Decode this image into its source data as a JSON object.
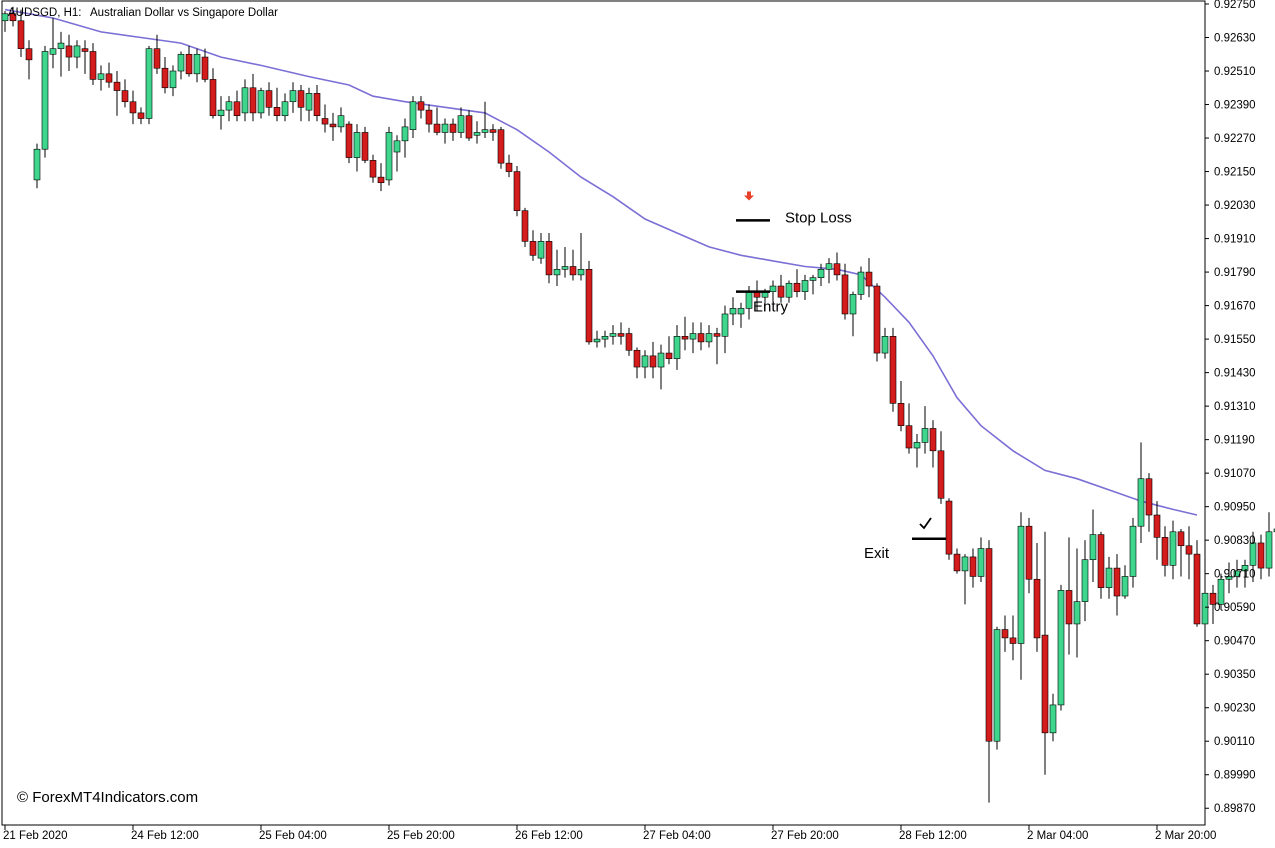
{
  "header": {
    "symbol": "AUDSGD, H1:",
    "description": "Australian Dollar vs Singapore Dollar"
  },
  "copyright": "© ForexMT4Indicators.com",
  "colors": {
    "bull": "#3dd68c",
    "bear": "#d41c1c",
    "ma": "#7b6fd6",
    "signal_arrow": "#e8412a",
    "frame": "#000000",
    "background": "#ffffff"
  },
  "chart_data": {
    "type": "candlestick",
    "symbol": "AUDSGD",
    "timeframe": "H1",
    "ylim": [
      0.8981,
      0.9275
    ],
    "y_ticks": [
      "0.92750",
      "0.92630",
      "0.92510",
      "0.92390",
      "0.92270",
      "0.92150",
      "0.92030",
      "0.91910",
      "0.91790",
      "0.91670",
      "0.91550",
      "0.91430",
      "0.91310",
      "0.91190",
      "0.91070",
      "0.90950",
      "0.90830",
      "0.90710",
      "0.90590",
      "0.90470",
      "0.90350",
      "0.90230",
      "0.90110",
      "0.89990",
      "0.89870"
    ],
    "x_ticks": [
      "21 Feb 2020",
      "24 Feb 12:00",
      "25 Feb 04:00",
      "25 Feb 20:00",
      "26 Feb 12:00",
      "27 Feb 04:00",
      "27 Feb 20:00",
      "28 Feb 12:00",
      "2 Mar 04:00",
      "2 Mar 20:00"
    ],
    "x_tick_bars": [
      0,
      16,
      32,
      48,
      64,
      80,
      96,
      112,
      128,
      144
    ],
    "candles": [
      [
        0.9269,
        0.92725,
        0.9265,
        0.92715
      ],
      [
        0.92715,
        0.9274,
        0.9267,
        0.9269
      ],
      [
        0.9269,
        0.9273,
        0.9256,
        0.9259
      ],
      [
        0.9259,
        0.9262,
        0.9248,
        0.9255
      ],
      [
        0.9212,
        0.9225,
        0.9209,
        0.9223
      ],
      [
        0.9223,
        0.926,
        0.922,
        0.9258
      ],
      [
        0.9257,
        0.927,
        0.9252,
        0.9259
      ],
      [
        0.9259,
        0.9265,
        0.9249,
        0.9261
      ],
      [
        0.926,
        0.9264,
        0.9251,
        0.9256
      ],
      [
        0.9256,
        0.9262,
        0.9252,
        0.926
      ],
      [
        0.9259,
        0.9262,
        0.925,
        0.9258
      ],
      [
        0.9258,
        0.9261,
        0.9246,
        0.9248
      ],
      [
        0.9248,
        0.9253,
        0.9244,
        0.925
      ],
      [
        0.925,
        0.9254,
        0.9245,
        0.9247
      ],
      [
        0.9247,
        0.9251,
        0.9235,
        0.9244
      ],
      [
        0.9244,
        0.9248,
        0.9238,
        0.924
      ],
      [
        0.924,
        0.9244,
        0.9232,
        0.9236
      ],
      [
        0.9236,
        0.9238,
        0.9232,
        0.9234
      ],
      [
        0.9234,
        0.926,
        0.9232,
        0.9259
      ],
      [
        0.9259,
        0.9264,
        0.925,
        0.9252
      ],
      [
        0.9252,
        0.9256,
        0.9243,
        0.9245
      ],
      [
        0.9245,
        0.9253,
        0.9242,
        0.9251
      ],
      [
        0.9251,
        0.9258,
        0.9248,
        0.9257
      ],
      [
        0.9257,
        0.926,
        0.9249,
        0.925
      ],
      [
        0.925,
        0.9259,
        0.9247,
        0.9257
      ],
      [
        0.9256,
        0.9259,
        0.9247,
        0.9248
      ],
      [
        0.9248,
        0.9252,
        0.9234,
        0.9235
      ],
      [
        0.9235,
        0.9242,
        0.923,
        0.9237
      ],
      [
        0.9237,
        0.9242,
        0.9233,
        0.924
      ],
      [
        0.924,
        0.9244,
        0.9233,
        0.9235
      ],
      [
        0.9236,
        0.9248,
        0.9233,
        0.9245
      ],
      [
        0.9245,
        0.925,
        0.9233,
        0.9236
      ],
      [
        0.9236,
        0.9245,
        0.9234,
        0.9244
      ],
      [
        0.9244,
        0.9247,
        0.9235,
        0.9238
      ],
      [
        0.9238,
        0.9245,
        0.9233,
        0.9235
      ],
      [
        0.9235,
        0.9243,
        0.9233,
        0.924
      ],
      [
        0.924,
        0.9247,
        0.9236,
        0.9244
      ],
      [
        0.9244,
        0.9246,
        0.9233,
        0.9238
      ],
      [
        0.9237,
        0.9245,
        0.9233,
        0.9243
      ],
      [
        0.9243,
        0.9246,
        0.9233,
        0.9235
      ],
      [
        0.9234,
        0.9239,
        0.9229,
        0.9232
      ],
      [
        0.9232,
        0.9236,
        0.9226,
        0.9231
      ],
      [
        0.9231,
        0.9238,
        0.9229,
        0.9235
      ],
      [
        0.9232,
        0.9233,
        0.9218,
        0.922
      ],
      [
        0.922,
        0.9232,
        0.9215,
        0.9229
      ],
      [
        0.9229,
        0.9231,
        0.9218,
        0.9219
      ],
      [
        0.9219,
        0.9221,
        0.9211,
        0.9213
      ],
      [
        0.9213,
        0.9218,
        0.9208,
        0.9211
      ],
      [
        0.9212,
        0.9231,
        0.921,
        0.9229
      ],
      [
        0.9222,
        0.9228,
        0.9215,
        0.9226
      ],
      [
        0.9226,
        0.9234,
        0.922,
        0.9231
      ],
      [
        0.923,
        0.9242,
        0.9227,
        0.924
      ],
      [
        0.924,
        0.9242,
        0.9234,
        0.9237
      ],
      [
        0.9237,
        0.9239,
        0.9229,
        0.9232
      ],
      [
        0.9232,
        0.9238,
        0.9228,
        0.9229
      ],
      [
        0.9229,
        0.9234,
        0.9225,
        0.9232
      ],
      [
        0.9232,
        0.9234,
        0.9226,
        0.9229
      ],
      [
        0.9229,
        0.9238,
        0.9227,
        0.9235
      ],
      [
        0.9235,
        0.9237,
        0.9226,
        0.9227
      ],
      [
        0.9228,
        0.9233,
        0.9225,
        0.9229
      ],
      [
        0.9229,
        0.924,
        0.9227,
        0.923
      ],
      [
        0.923,
        0.9232,
        0.9226,
        0.9229
      ],
      [
        0.923,
        0.9231,
        0.9216,
        0.9218
      ],
      [
        0.9218,
        0.9221,
        0.9213,
        0.9215
      ],
      [
        0.9215,
        0.9217,
        0.9199,
        0.9201
      ],
      [
        0.9201,
        0.9202,
        0.9188,
        0.919
      ],
      [
        0.919,
        0.9194,
        0.9183,
        0.9185
      ],
      [
        0.9184,
        0.9193,
        0.9182,
        0.919
      ],
      [
        0.919,
        0.9193,
        0.9175,
        0.9178
      ],
      [
        0.9178,
        0.9187,
        0.9174,
        0.918
      ],
      [
        0.918,
        0.9188,
        0.9177,
        0.9181
      ],
      [
        0.9181,
        0.9187,
        0.9176,
        0.9178
      ],
      [
        0.9178,
        0.9193,
        0.9176,
        0.918
      ],
      [
        0.918,
        0.9183,
        0.9153,
        0.9154
      ],
      [
        0.9154,
        0.9158,
        0.9152,
        0.9155
      ],
      [
        0.9155,
        0.9158,
        0.9152,
        0.9156
      ],
      [
        0.9156,
        0.916,
        0.9153,
        0.9157
      ],
      [
        0.9157,
        0.9161,
        0.9153,
        0.9156
      ],
      [
        0.9157,
        0.9159,
        0.9149,
        0.9151
      ],
      [
        0.9151,
        0.9152,
        0.9141,
        0.9145
      ],
      [
        0.9145,
        0.9151,
        0.9141,
        0.9149
      ],
      [
        0.9149,
        0.9154,
        0.9141,
        0.9145
      ],
      [
        0.9145,
        0.9153,
        0.9137,
        0.915
      ],
      [
        0.915,
        0.9156,
        0.9146,
        0.9148
      ],
      [
        0.9148,
        0.916,
        0.9144,
        0.9156
      ],
      [
        0.9156,
        0.9163,
        0.9151,
        0.9155
      ],
      [
        0.9155,
        0.9161,
        0.915,
        0.9157
      ],
      [
        0.9157,
        0.9161,
        0.9151,
        0.9154
      ],
      [
        0.9154,
        0.916,
        0.9152,
        0.9157
      ],
      [
        0.9157,
        0.9159,
        0.9146,
        0.9156
      ],
      [
        0.9156,
        0.9167,
        0.915,
        0.9164
      ],
      [
        0.9164,
        0.917,
        0.916,
        0.9166
      ],
      [
        0.9164,
        0.9168,
        0.9159,
        0.9166
      ],
      [
        0.9166,
        0.9174,
        0.9162,
        0.9172
      ],
      [
        0.9172,
        0.9176,
        0.9165,
        0.917
      ],
      [
        0.917,
        0.9173,
        0.9165,
        0.9172
      ],
      [
        0.9172,
        0.9176,
        0.9168,
        0.9174
      ],
      [
        0.9174,
        0.9178,
        0.9168,
        0.917
      ],
      [
        0.917,
        0.9176,
        0.9168,
        0.9175
      ],
      [
        0.9175,
        0.918,
        0.917,
        0.9172
      ],
      [
        0.9172,
        0.9178,
        0.9169,
        0.9176
      ],
      [
        0.9176,
        0.9178,
        0.9171,
        0.9177
      ],
      [
        0.9177,
        0.9182,
        0.9174,
        0.918
      ],
      [
        0.918,
        0.9184,
        0.9175,
        0.9182
      ],
      [
        0.9182,
        0.9186,
        0.9176,
        0.9178
      ],
      [
        0.9178,
        0.9182,
        0.9162,
        0.9164
      ],
      [
        0.9164,
        0.9172,
        0.9156,
        0.9171
      ],
      [
        0.9171,
        0.9181,
        0.9169,
        0.9179
      ],
      [
        0.9179,
        0.9184,
        0.917,
        0.9174
      ],
      [
        0.9174,
        0.9175,
        0.9147,
        0.915
      ],
      [
        0.915,
        0.9159,
        0.9148,
        0.9156
      ],
      [
        0.9156,
        0.9159,
        0.9129,
        0.9132
      ],
      [
        0.9132,
        0.914,
        0.9122,
        0.9124
      ],
      [
        0.9124,
        0.9132,
        0.9114,
        0.9116
      ],
      [
        0.9116,
        0.9121,
        0.9109,
        0.9118
      ],
      [
        0.9118,
        0.9131,
        0.9114,
        0.9123
      ],
      [
        0.9123,
        0.9126,
        0.9109,
        0.9115
      ],
      [
        0.9115,
        0.9122,
        0.9096,
        0.9098
      ],
      [
        0.9097,
        0.9098,
        0.9076,
        0.9078
      ],
      [
        0.9078,
        0.908,
        0.9071,
        0.9072
      ],
      [
        0.9072,
        0.9078,
        0.906,
        0.9077
      ],
      [
        0.9077,
        0.908,
        0.9066,
        0.907
      ],
      [
        0.907,
        0.9084,
        0.9068,
        0.908
      ],
      [
        0.908,
        0.9083,
        0.8989,
        0.9011
      ],
      [
        0.9011,
        0.9052,
        0.9008,
        0.9051
      ],
      [
        0.9051,
        0.9056,
        0.9043,
        0.9048
      ],
      [
        0.9048,
        0.9056,
        0.904,
        0.9046
      ],
      [
        0.9046,
        0.9093,
        0.9033,
        0.9088
      ],
      [
        0.9088,
        0.9091,
        0.9064,
        0.9069
      ],
      [
        0.9069,
        0.9082,
        0.9043,
        0.9048
      ],
      [
        0.9049,
        0.9086,
        0.8999,
        0.9014
      ],
      [
        0.9014,
        0.9028,
        0.9011,
        0.9024
      ],
      [
        0.9024,
        0.9067,
        0.9022,
        0.9065
      ],
      [
        0.9065,
        0.9084,
        0.9042,
        0.9053
      ],
      [
        0.9053,
        0.908,
        0.9041,
        0.9061
      ],
      [
        0.9061,
        0.9083,
        0.9054,
        0.9076
      ],
      [
        0.9076,
        0.9094,
        0.9068,
        0.9085
      ],
      [
        0.9085,
        0.9086,
        0.9062,
        0.9066
      ],
      [
        0.9066,
        0.9077,
        0.9062,
        0.9073
      ],
      [
        0.9073,
        0.9078,
        0.9056,
        0.9063
      ],
      [
        0.9063,
        0.9074,
        0.9062,
        0.907
      ],
      [
        0.907,
        0.9091,
        0.9066,
        0.9088
      ],
      [
        0.9088,
        0.9118,
        0.9082,
        0.9105
      ],
      [
        0.9105,
        0.9107,
        0.9086,
        0.9092
      ],
      [
        0.9092,
        0.9097,
        0.9076,
        0.9084
      ],
      [
        0.9084,
        0.9088,
        0.907,
        0.9074
      ],
      [
        0.9074,
        0.909,
        0.9069,
        0.9086
      ],
      [
        0.9086,
        0.9087,
        0.907,
        0.9081
      ],
      [
        0.9081,
        0.9088,
        0.9069,
        0.9078
      ],
      [
        0.9078,
        0.9083,
        0.9052,
        0.9053
      ],
      [
        0.9053,
        0.9078,
        0.9048,
        0.9064
      ],
      [
        0.9064,
        0.9067,
        0.9053,
        0.906
      ],
      [
        0.906,
        0.9071,
        0.9058,
        0.9069
      ],
      [
        0.9069,
        0.9075,
        0.9064,
        0.907
      ],
      [
        0.907,
        0.9076,
        0.9066,
        0.9072
      ],
      [
        0.9072,
        0.9076,
        0.9066,
        0.9074
      ],
      [
        0.9074,
        0.9086,
        0.9068,
        0.9082
      ],
      [
        0.9082,
        0.9085,
        0.9069,
        0.9073
      ],
      [
        0.9073,
        0.9093,
        0.907,
        0.9086
      ],
      [
        0.9086,
        0.9096,
        0.9073,
        0.9087
      ],
      [
        0.9086,
        0.9087,
        0.9065,
        0.9073
      ]
    ],
    "ma_line": [
      [
        0,
        0.9273
      ],
      [
        6,
        0.927
      ],
      [
        12,
        0.9265
      ],
      [
        17,
        0.9263
      ],
      [
        22,
        0.9261
      ],
      [
        27,
        0.9256
      ],
      [
        32,
        0.9253
      ],
      [
        38,
        0.9249
      ],
      [
        43,
        0.9246
      ],
      [
        46,
        0.9242
      ],
      [
        50,
        0.924
      ],
      [
        55,
        0.9238
      ],
      [
        60,
        0.9236
      ],
      [
        64,
        0.923
      ],
      [
        68,
        0.9222
      ],
      [
        72,
        0.9213
      ],
      [
        76,
        0.9206
      ],
      [
        80,
        0.9198
      ],
      [
        84,
        0.9193
      ],
      [
        88,
        0.9188
      ],
      [
        92,
        0.9185
      ],
      [
        96,
        0.9183
      ],
      [
        100,
        0.9181
      ],
      [
        104,
        0.918
      ],
      [
        107,
        0.9178
      ],
      [
        110,
        0.917
      ],
      [
        113,
        0.9161
      ],
      [
        116,
        0.9149
      ],
      [
        119,
        0.9134
      ],
      [
        122,
        0.9124
      ],
      [
        126,
        0.9115
      ],
      [
        130,
        0.9108
      ],
      [
        134,
        0.9105
      ],
      [
        138,
        0.9101
      ],
      [
        142,
        0.9097
      ],
      [
        146,
        0.9094
      ],
      [
        149,
        0.9092
      ]
    ],
    "annotations": [
      {
        "type": "level",
        "label": "Stop Loss",
        "bar": 93.5,
        "price": 0.91975
      },
      {
        "type": "level",
        "label": "Entry",
        "bar": 93.5,
        "price": 0.9172
      },
      {
        "type": "level",
        "label": "Exit",
        "bar": 115.5,
        "price": 0.90835
      },
      {
        "type": "sell-arrow",
        "bar": 93,
        "price": 0.9205
      },
      {
        "type": "checkmark",
        "bar": 115,
        "price": 0.9087
      }
    ]
  }
}
